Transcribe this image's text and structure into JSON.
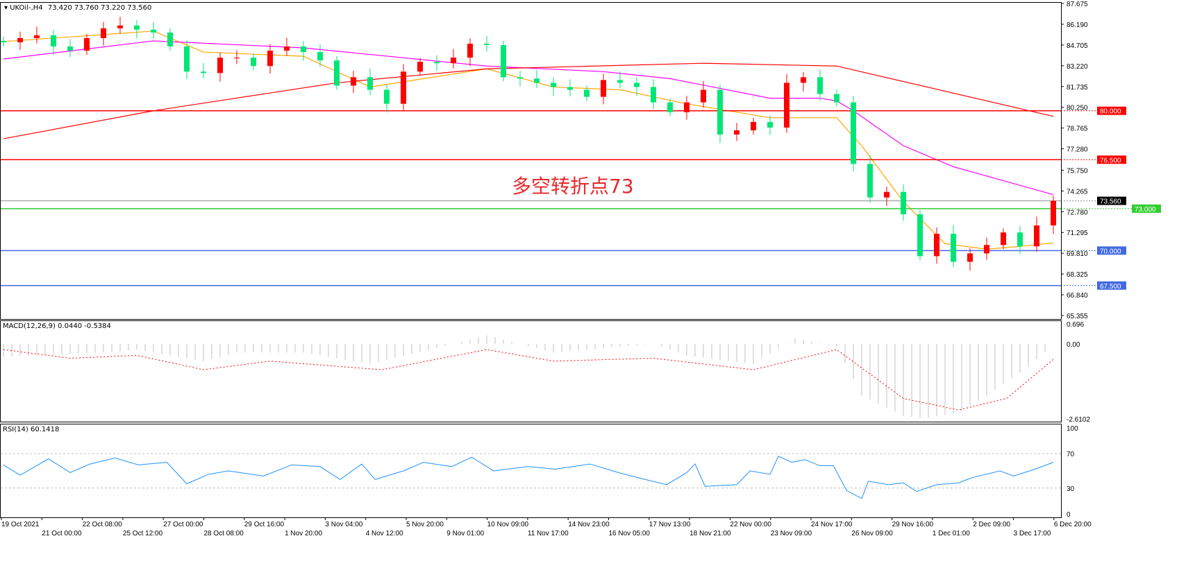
{
  "chart_data": [
    {
      "type": "candlestick",
      "title": "UKOil-,H4",
      "ohlc_label": "73.420 73.760 73.220 73.560",
      "ylim": [
        65.355,
        87.675
      ],
      "y_ticks": [
        "87.675",
        "86.190",
        "84.705",
        "83.220",
        "81.735",
        "80.250",
        "78.765",
        "77.280",
        "75.750",
        "74.265",
        "72.780",
        "71.295",
        "69.810",
        "68.325",
        "66.840",
        "65.355"
      ],
      "closes": [
        84.9,
        85.2,
        85.4,
        84.6,
        84.3,
        85.2,
        85.9,
        86.1,
        85.8,
        85.6,
        84.6,
        82.8,
        82.7,
        83.8,
        83.8,
        83.2,
        84.3,
        84.6,
        84.2,
        83.6,
        81.8,
        82.4,
        81.5,
        80.5,
        82.8,
        83.5,
        83.4,
        83.8,
        84.8,
        84.7,
        82.4,
        82.3,
        82.0,
        81.7,
        81.5,
        81.0,
        82.2,
        82.0,
        81.7,
        80.6,
        79.9,
        80.6,
        81.5,
        78.3,
        78.6,
        79.2,
        78.8,
        82.0,
        82.4,
        81.2,
        80.6,
        76.2,
        73.8,
        74.2,
        72.6,
        69.6,
        71.2,
        69.2,
        69.8,
        70.4,
        71.3,
        70.3,
        71.8,
        73.56
      ],
      "moving_averages": [
        {
          "color": "#ffa500",
          "points": [
            [
              0,
              84.95
            ],
            [
              9,
              85.7
            ],
            [
              12,
              84.2
            ],
            [
              18,
              83.9
            ],
            [
              22,
              81.7
            ],
            [
              29,
              83.0
            ],
            [
              33,
              81.7
            ],
            [
              37,
              81.5
            ],
            [
              41,
              80.5
            ],
            [
              46,
              79.5
            ],
            [
              50,
              79.5
            ],
            [
              51.5,
              77.5
            ],
            [
              54,
              73.5
            ],
            [
              56.5,
              70.5
            ],
            [
              59,
              70.1
            ],
            [
              61,
              70.3
            ],
            [
              63,
              70.55
            ]
          ]
        },
        {
          "color": "#ff00ff",
          "points": [
            [
              0,
              83.7
            ],
            [
              9,
              85.0
            ],
            [
              18,
              84.5
            ],
            [
              29,
              83.2
            ],
            [
              36,
              82.8
            ],
            [
              40,
              82.3
            ],
            [
              46,
              80.9
            ],
            [
              49,
              80.9
            ],
            [
              50,
              80.7
            ],
            [
              51,
              80.0
            ],
            [
              54,
              77.5
            ],
            [
              57,
              76.0
            ],
            [
              63,
              74.0
            ]
          ]
        },
        {
          "color": "#ff0000",
          "points": [
            [
              0,
              78.0
            ],
            [
              9,
              80.0
            ],
            [
              20,
              82.0
            ],
            [
              29,
              83.0
            ],
            [
              42,
              83.4
            ],
            [
              50,
              83.2
            ],
            [
              63,
              79.6
            ]
          ]
        }
      ],
      "levels": [
        {
          "value": 80.0,
          "label": "80.000",
          "color": "#ff0000"
        },
        {
          "value": 76.5,
          "label": "76.500",
          "color": "#ff0000"
        },
        {
          "value": 73.56,
          "label": "73.560",
          "color": "#8c8c8c",
          "label_bg": "#000000"
        },
        {
          "value": 73.0,
          "label": "73.000",
          "color": "#32cd32"
        },
        {
          "value": 70.0,
          "label": "70.000",
          "color": "#4169e1"
        },
        {
          "value": 67.5,
          "label": "67.500",
          "color": "#4169e1"
        }
      ],
      "annotation": "多空转折点73",
      "up_color": "#ff0000",
      "down_color": "#00e676"
    },
    {
      "type": "bar+line",
      "title": "MACD(12,26,9) 0.0440 -0.5384",
      "ylim": [
        -2.6102,
        0.696
      ],
      "y_ticks": [
        "0.696",
        "0.00",
        "-2.6102"
      ],
      "histogram": [
        [
          0,
          -0.45
        ],
        [
          6,
          -0.3
        ],
        [
          8,
          -0.2
        ],
        [
          12,
          -0.6
        ],
        [
          14,
          -0.3
        ],
        [
          18,
          -0.3
        ],
        [
          22,
          -0.7
        ],
        [
          27,
          0.0
        ],
        [
          29,
          0.3
        ],
        [
          33,
          -0.3
        ],
        [
          39,
          0.0
        ],
        [
          41,
          -0.4
        ],
        [
          45,
          -0.7
        ],
        [
          47.5,
          0.2
        ],
        [
          50,
          -0.1
        ],
        [
          51.5,
          -1.8
        ],
        [
          54,
          -2.5
        ],
        [
          55.2,
          -2.6
        ],
        [
          57.3,
          -2.4
        ],
        [
          59,
          -1.8
        ],
        [
          61.5,
          -0.8
        ],
        [
          63,
          0.0
        ]
      ],
      "signal": [
        [
          0,
          -0.2
        ],
        [
          4,
          -0.5
        ],
        [
          8,
          -0.4
        ],
        [
          12,
          -0.9
        ],
        [
          16,
          -0.6
        ],
        [
          22.7,
          -0.9
        ],
        [
          29,
          -0.2
        ],
        [
          33,
          -0.6
        ],
        [
          39,
          -0.5
        ],
        [
          45,
          -0.9
        ],
        [
          50,
          -0.2
        ],
        [
          54,
          -1.9
        ],
        [
          57.3,
          -2.3
        ],
        [
          60.2,
          -1.9
        ],
        [
          63,
          -0.54
        ]
      ],
      "hist_color": "#c0c0c0",
      "signal_color": "#ff0000"
    },
    {
      "type": "line",
      "title": "RSI(14) 60.1418",
      "ylim": [
        0,
        100
      ],
      "y_ticks": [
        "100",
        "70",
        "30",
        "0"
      ],
      "levels": [
        70,
        30
      ],
      "color": "#1e90ff",
      "points": [
        [
          0,
          57
        ],
        [
          1,
          45
        ],
        [
          2.7,
          64
        ],
        [
          4,
          48
        ],
        [
          5.2,
          58
        ],
        [
          6.7,
          65
        ],
        [
          8.1,
          57
        ],
        [
          9.8,
          60
        ],
        [
          11,
          35
        ],
        [
          12.3,
          46
        ],
        [
          13.5,
          50
        ],
        [
          15.6,
          44
        ],
        [
          17.3,
          57
        ],
        [
          19,
          55
        ],
        [
          20.2,
          40
        ],
        [
          21.5,
          58
        ],
        [
          22.3,
          40
        ],
        [
          24,
          50
        ],
        [
          25.2,
          60
        ],
        [
          26.9,
          55
        ],
        [
          28.1,
          66
        ],
        [
          29.4,
          50
        ],
        [
          31.5,
          55
        ],
        [
          33.1,
          52
        ],
        [
          35.2,
          58
        ],
        [
          36.9,
          48
        ],
        [
          38.5,
          40
        ],
        [
          39.8,
          34
        ],
        [
          41,
          48
        ],
        [
          41.5,
          58
        ],
        [
          42.1,
          32
        ],
        [
          44,
          34
        ],
        [
          44.8,
          50
        ],
        [
          46,
          46
        ],
        [
          46.5,
          67
        ],
        [
          47.3,
          60
        ],
        [
          48.1,
          63
        ],
        [
          49,
          56
        ],
        [
          49.8,
          56
        ],
        [
          50.6,
          27
        ],
        [
          51.5,
          18
        ],
        [
          51.9,
          38
        ],
        [
          53.1,
          34
        ],
        [
          54,
          36
        ],
        [
          54.8,
          26
        ],
        [
          56,
          34
        ],
        [
          57.3,
          36
        ],
        [
          58.1,
          42
        ],
        [
          59.8,
          50
        ],
        [
          60.6,
          44
        ],
        [
          61.9,
          52
        ],
        [
          63,
          60
        ]
      ]
    }
  ],
  "time_axis": [
    "19 Oct 2021",
    "21 Oct 00:00",
    "22 Oct 08:00",
    "25 Oct 12:00",
    "27 Oct 00:00",
    "28 Oct 08:00",
    "29 Oct 16:00",
    "1 Nov 20:00",
    "3 Nov 04:00",
    "4 Nov 12:00",
    "5 Nov 20:00",
    "9 Nov 01:00",
    "10 Nov 09:00",
    "11 Nov 17:00",
    "14 Nov 23:00",
    "16 Nov 05:00",
    "17 Nov 13:00",
    "18 Nov 21:00",
    "22 Nov 00:00",
    "23 Nov 09:00",
    "24 Nov 17:00",
    "26 Nov 09:00",
    "29 Nov 16:00",
    "1 Dec 01:00",
    "2 Dec 09:00",
    "3 Dec 17:00",
    "6 Dec 20:00"
  ]
}
